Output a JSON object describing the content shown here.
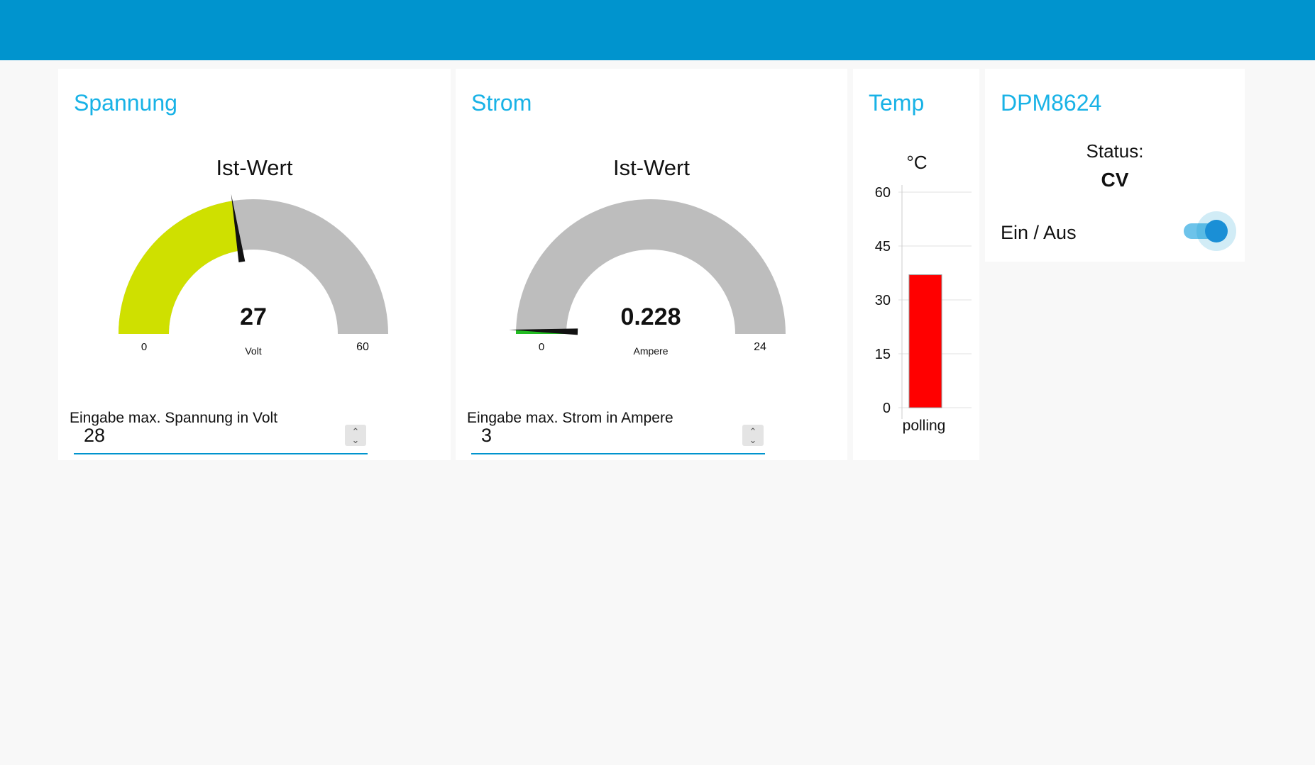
{
  "colors": {
    "topbar": "#0094ce",
    "title": "#18b2e6",
    "gauge_fill_voltage": "#cfe000",
    "gauge_fill_current": "#22bb22",
    "gauge_background": "#bdbdbd",
    "bar_color": "#ff0000",
    "accent": "#0094ce"
  },
  "spannung": {
    "title": "Spannung",
    "gauge_label": "Ist-Wert",
    "value": "27",
    "unit": "Volt",
    "min": "0",
    "max": "60",
    "input_label": "Eingabe max. Spannung in Volt",
    "input_value": "28"
  },
  "strom": {
    "title": "Strom",
    "gauge_label": "Ist-Wert",
    "value": "0.228",
    "unit": "Ampere",
    "min": "0",
    "max": "24",
    "input_label": "Eingabe max. Strom in Ampere",
    "input_value": "3"
  },
  "temp": {
    "title": "Temp"
  },
  "dpm": {
    "title": "DPM8624",
    "status_label": "Status:",
    "status_value": "CV",
    "toggle_label": "Ein / Aus",
    "toggle_on": true
  },
  "chart_data": {
    "type": "bar",
    "title": "°C",
    "categories": [
      "polling"
    ],
    "values": [
      37
    ],
    "ylim": [
      0,
      60
    ],
    "yticks": [
      "0",
      "15",
      "30",
      "45",
      "60"
    ],
    "grid": true
  }
}
